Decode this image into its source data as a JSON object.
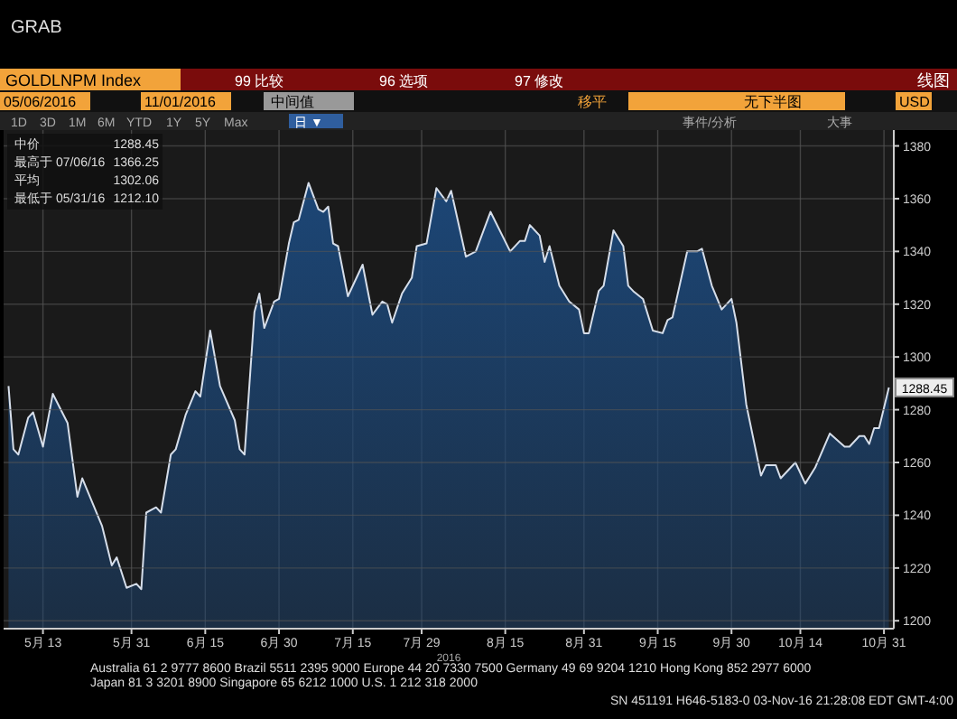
{
  "chart_data": {
    "type": "area",
    "title": "GOLDLNPM Index",
    "xlabel": "2016",
    "annotations": [
      "GRAB",
      "99 比较",
      "96 选项",
      "97 修改",
      "线图",
      "05/06/2016",
      "11/01/2016",
      "中间值",
      "移平",
      "无下半图",
      "USD",
      "1D",
      "3D",
      "1M",
      "6M",
      "YTD",
      "1Y",
      "5Y",
      "Max",
      "日 ▼",
      "事件/分析",
      "大事",
      "中价",
      "1288.45",
      "最高于 07/06/16",
      "1366.25",
      "平均",
      "1302.06",
      "最低于 05/31/16",
      "1212.10",
      {
        "text": "1288.45",
        "x": "2016-11-01",
        "y": 1288.45
      },
      "Australia 61 2 9777 8600 Brazil 5511 2395 9000 Europe 44 20 7330 7500 Germany 49 69 9204 1210 Hong Kong 852 2977 6000",
      "Japan 81 3 3201 8900 Singapore 65 6212 1000 U.S. 1 212 318 2000",
      "SN 451191 H646-5183-0 03-Nov-16 21:28:08 EDT GMT-4:00"
    ],
    "x": [
      "2016-05-06",
      "2016-05-07",
      "2016-05-08",
      "2016-05-10",
      "2016-05-11",
      "2016-05-13",
      "2016-05-15",
      "2016-05-18",
      "2016-05-20",
      "2016-05-21",
      "2016-05-25",
      "2016-05-27",
      "2016-05-28",
      "2016-05-30",
      "2016-06-01",
      "2016-06-02",
      "2016-06-03",
      "2016-06-05",
      "2016-06-06",
      "2016-06-08",
      "2016-06-09",
      "2016-06-11",
      "2016-06-13",
      "2016-06-14",
      "2016-06-16",
      "2016-06-18",
      "2016-06-21",
      "2016-06-22",
      "2016-06-23",
      "2016-06-25",
      "2016-06-26",
      "2016-06-27",
      "2016-06-29",
      "2016-06-30",
      "2016-07-02",
      "2016-07-03",
      "2016-07-04",
      "2016-07-06",
      "2016-07-08",
      "2016-07-09",
      "2016-07-10",
      "2016-07-11",
      "2016-07-12",
      "2016-07-14",
      "2016-07-17",
      "2016-07-19",
      "2016-07-21",
      "2016-07-22",
      "2016-07-23",
      "2016-07-25",
      "2016-07-27",
      "2016-07-28",
      "2016-07-30",
      "2016-08-01",
      "2016-08-03",
      "2016-08-04",
      "2016-08-07",
      "2016-08-09",
      "2016-08-12",
      "2016-08-16",
      "2016-08-18",
      "2016-08-19",
      "2016-08-20",
      "2016-08-22",
      "2016-08-23",
      "2016-08-24",
      "2016-08-26",
      "2016-08-28",
      "2016-08-30",
      "2016-08-31",
      "2016-09-01",
      "2016-09-03",
      "2016-09-04",
      "2016-09-06",
      "2016-09-08",
      "2016-09-09",
      "2016-09-10",
      "2016-09-12",
      "2016-09-14",
      "2016-09-16",
      "2016-09-17",
      "2016-09-18",
      "2016-09-21",
      "2016-09-23",
      "2016-09-24",
      "2016-09-26",
      "2016-09-28",
      "2016-09-30",
      "2016-10-01",
      "2016-10-03",
      "2016-10-06",
      "2016-10-07",
      "2016-10-09",
      "2016-10-10",
      "2016-10-13",
      "2016-10-15",
      "2016-10-17",
      "2016-10-20",
      "2016-10-23",
      "2016-10-24",
      "2016-10-26",
      "2016-10-27",
      "2016-10-28",
      "2016-10-29",
      "2016-10-30",
      "2016-11-01"
    ],
    "series": [
      {
        "color": "#1c4676",
        "values": [
          1289,
          1265,
          1263,
          1277,
          1279,
          1266,
          1286,
          1275,
          1247,
          1254,
          1236,
          1221,
          1224,
          1212.5,
          1214,
          1212,
          1241,
          1243,
          1241,
          1263,
          1265,
          1278,
          1287,
          1285,
          1310,
          1289,
          1276,
          1265,
          1263,
          1317,
          1324,
          1311,
          1321,
          1322,
          1343,
          1351,
          1352,
          1366,
          1356,
          1355,
          1357,
          1343,
          1342,
          1323,
          1335,
          1316,
          1321,
          1320,
          1313,
          1324,
          1330,
          1342,
          1343,
          1364,
          1359,
          1363,
          1338,
          1340,
          1355,
          1340,
          1344,
          1344,
          1350,
          1346,
          1336,
          1342,
          1327,
          1321,
          1318,
          1309,
          1309,
          1325,
          1327,
          1348,
          1342,
          1327,
          1325,
          1322,
          1310,
          1309,
          1314,
          1315,
          1340,
          1340,
          1341,
          1327,
          1318,
          1322,
          1313,
          1282,
          1255,
          1259,
          1259,
          1254,
          1260,
          1252,
          1258,
          1271,
          1266,
          1266,
          1270,
          1270,
          1267,
          1273,
          1273,
          1288.45
        ]
      }
    ],
    "xlim": [
      "2016-05-05",
      "2016-11-02"
    ],
    "xticks": [
      {
        "value": "2016-05-13",
        "label": "5月 13"
      },
      {
        "value": "2016-05-31",
        "label": "5月 31"
      },
      {
        "value": "2016-06-15",
        "label": "6月 15"
      },
      {
        "value": "2016-06-30",
        "label": "6月 30"
      },
      {
        "value": "2016-07-15",
        "label": "7月 15"
      },
      {
        "value": "2016-07-29",
        "label": "7月 29"
      },
      {
        "value": "2016-08-15",
        "label": "8月 15"
      },
      {
        "value": "2016-08-31",
        "label": "8月 31"
      },
      {
        "value": "2016-09-15",
        "label": "9月 15"
      },
      {
        "value": "2016-09-30",
        "label": "9月 30"
      },
      {
        "value": "2016-10-14",
        "label": "10月 14"
      },
      {
        "value": "2016-10-31",
        "label": "10月 31"
      }
    ],
    "ylim": [
      1197,
      1386
    ],
    "yticks": [
      1200,
      1220,
      1240,
      1260,
      1280,
      1300,
      1320,
      1340,
      1360,
      1380
    ],
    "grid": true
  }
}
